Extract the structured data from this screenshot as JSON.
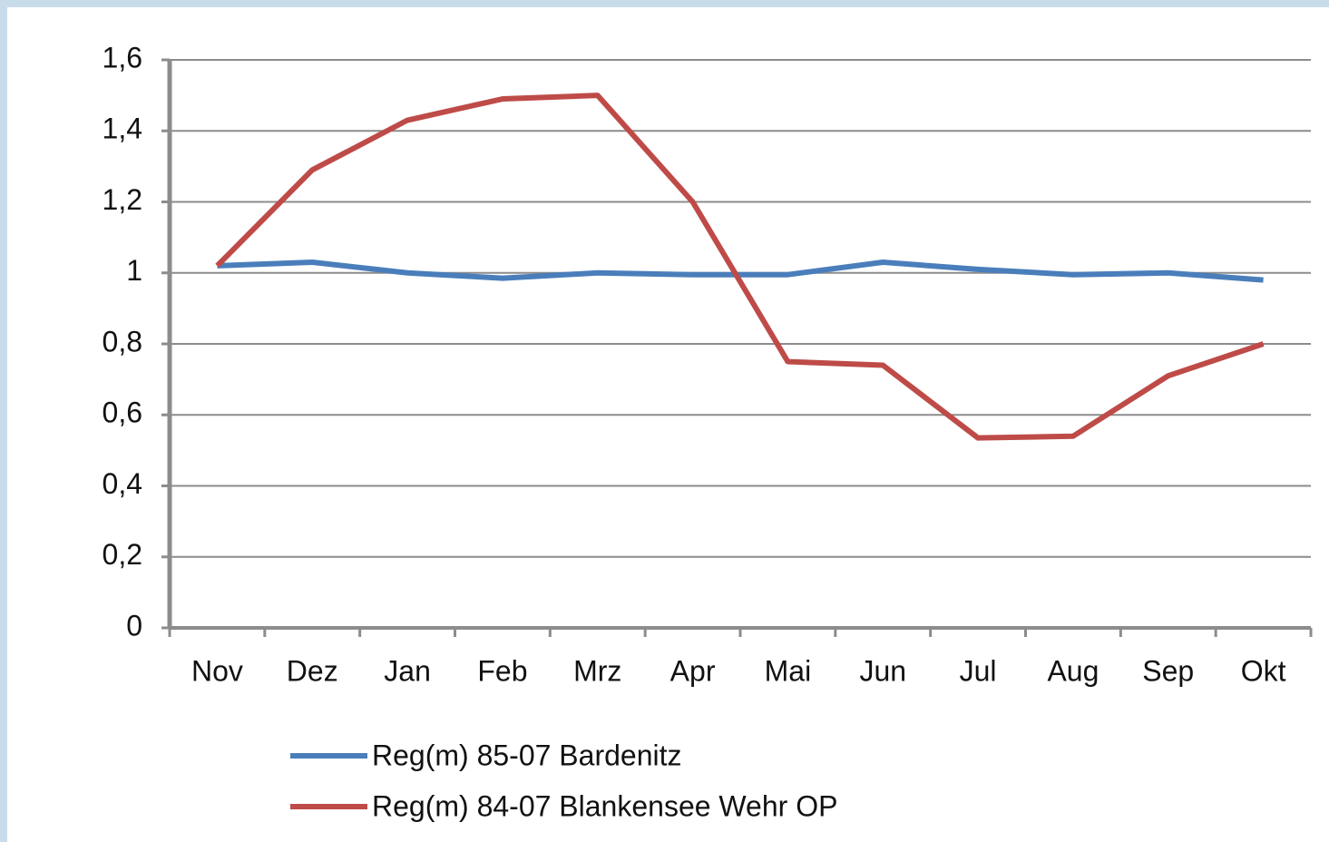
{
  "chart_data": {
    "type": "line",
    "categories": [
      "Nov",
      "Dez",
      "Jan",
      "Feb",
      "Mrz",
      "Apr",
      "Mai",
      "Jun",
      "Jul",
      "Aug",
      "Sep",
      "Okt"
    ],
    "series": [
      {
        "name": "Reg(m) 85-07 Bardenitz",
        "color": "#4a7ebb",
        "values": [
          1.02,
          1.03,
          1.0,
          0.985,
          1.0,
          0.995,
          0.995,
          1.03,
          1.01,
          0.995,
          1.0,
          0.98
        ]
      },
      {
        "name": "Reg(m) 84-07 Blankensee Wehr OP",
        "color": "#be4b48",
        "values": [
          1.02,
          1.29,
          1.43,
          1.49,
          1.5,
          1.2,
          0.75,
          0.74,
          0.535,
          0.54,
          0.71,
          0.8
        ]
      }
    ],
    "ylim": [
      0,
      1.6
    ],
    "yticks": [
      0,
      {
        "value": 0.2,
        "label": "0,2"
      },
      {
        "value": 0.4,
        "label": "0,4"
      },
      {
        "value": 0.6,
        "label": "0,6"
      },
      {
        "value": 0.8,
        "label": "0,8"
      },
      1,
      {
        "value": 1.2,
        "label": "1,2"
      },
      {
        "value": 1.4,
        "label": "1,4"
      },
      {
        "value": 1.6,
        "label": "1,6"
      }
    ],
    "grid": true,
    "legend": "bottom"
  }
}
